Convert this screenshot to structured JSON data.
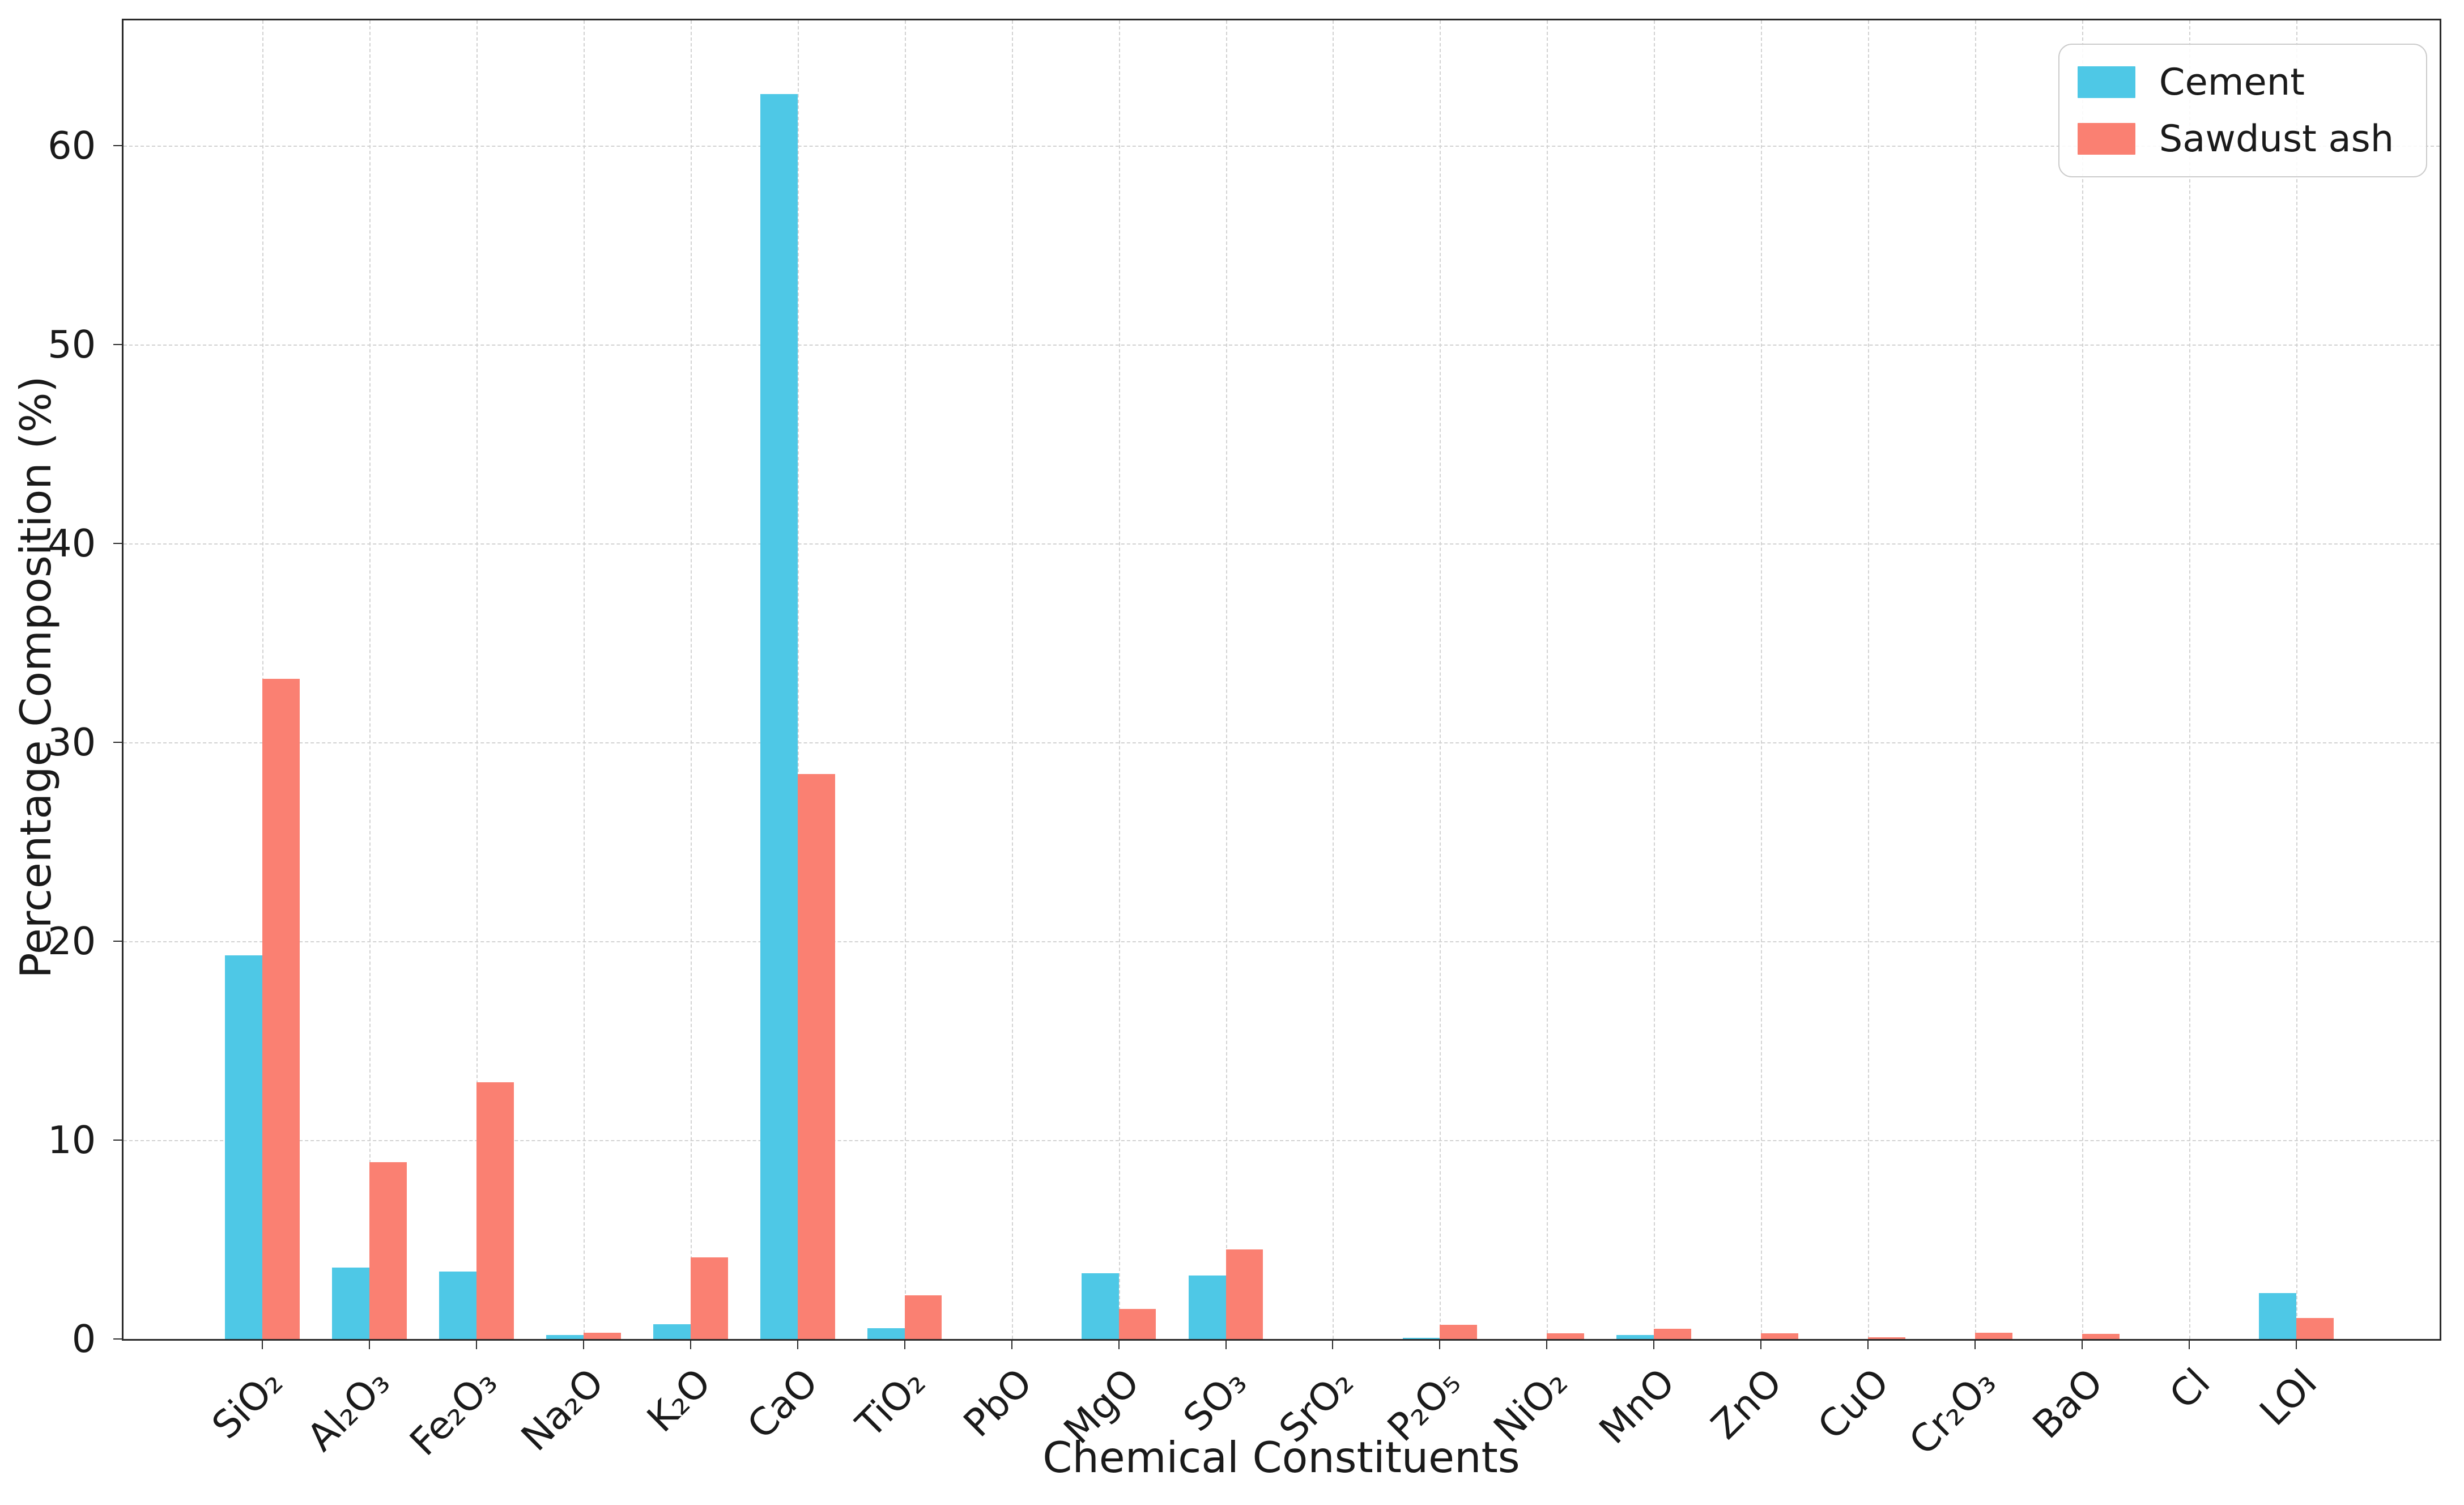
{
  "chart_data": {
    "type": "bar",
    "bar_mode": "grouped",
    "title": "",
    "xlabel": "Chemical Constituents",
    "ylabel": "Percentage Composition (%)",
    "categories": [
      "SiO₂",
      "Al₂O₃",
      "Fe₂O₃",
      "Na₂O",
      "K₂O",
      "CaO",
      "TiO₂",
      "PbO",
      "MgO",
      "SO₃",
      "SrO₂",
      "P₂O₅",
      "NiO₂",
      "MnO",
      "ZnO",
      "CuO",
      "Cr₂O₃",
      "BaO",
      "Cl",
      "LOI"
    ],
    "series": [
      {
        "name": "Cement",
        "color": "#4EC8E6",
        "values": [
          19.3,
          3.6,
          3.4,
          0.2,
          0.75,
          62.6,
          0.55,
          0,
          3.3,
          3.2,
          0,
          0.05,
          0,
          0.2,
          0,
          0,
          0,
          0,
          0,
          2.3
        ]
      },
      {
        "name": "Sawdust ash",
        "color": "#FA8072",
        "values": [
          33.2,
          8.9,
          12.9,
          0.3,
          4.1,
          28.4,
          2.2,
          0,
          1.5,
          4.5,
          0,
          0.7,
          0.28,
          0.5,
          0.28,
          0.08,
          0.32,
          0.25,
          0,
          1.05
        ]
      }
    ],
    "ylim": [
      0,
      66.3
    ],
    "yticks": [
      0,
      10,
      20,
      30,
      40,
      50,
      60
    ],
    "xtick_rotation": 45,
    "grid": "both, dashed, light gray",
    "legend_position": "upper right",
    "grid_color": "#d2d2d2",
    "spine_color": "#2a2a2a",
    "background_color": "#ffffff"
  }
}
